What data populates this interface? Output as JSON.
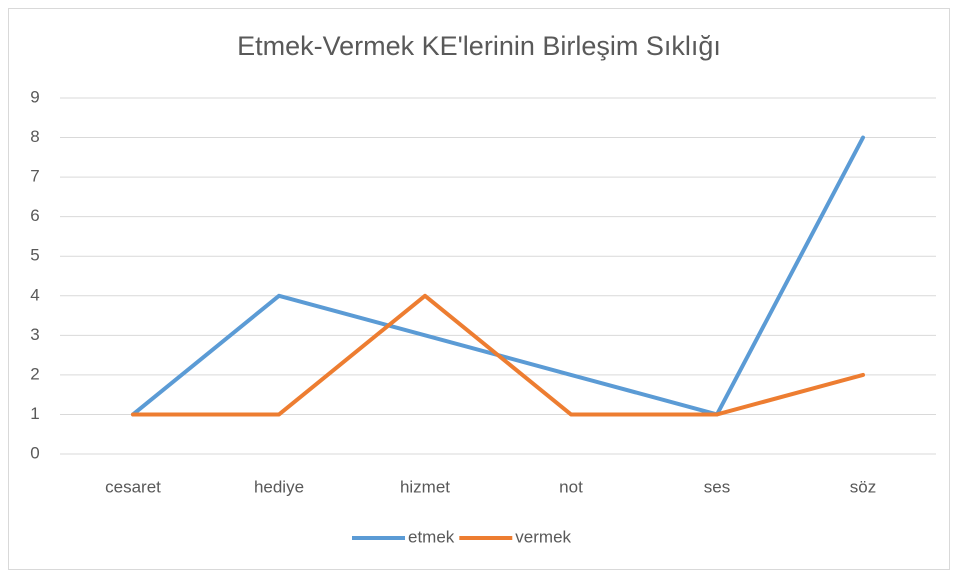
{
  "chart_data": {
    "type": "line",
    "title": "Etmek-Vermek KE'lerinin Birleşim Sıklığı",
    "categories": [
      "cesaret",
      "hediye",
      "hizmet",
      "not",
      "ses",
      "söz"
    ],
    "series": [
      {
        "name": "etmek",
        "color": "#5b9bd5",
        "values": [
          1,
          4,
          3,
          2,
          1,
          8
        ]
      },
      {
        "name": "vermek",
        "color": "#ed7d31",
        "values": [
          1,
          1,
          4,
          1,
          1,
          2
        ]
      }
    ],
    "ylim": [
      0,
      9
    ],
    "yticks": [
      0,
      1,
      2,
      3,
      4,
      5,
      6,
      7,
      8,
      9
    ],
    "grid": true,
    "legend": "bottom"
  }
}
